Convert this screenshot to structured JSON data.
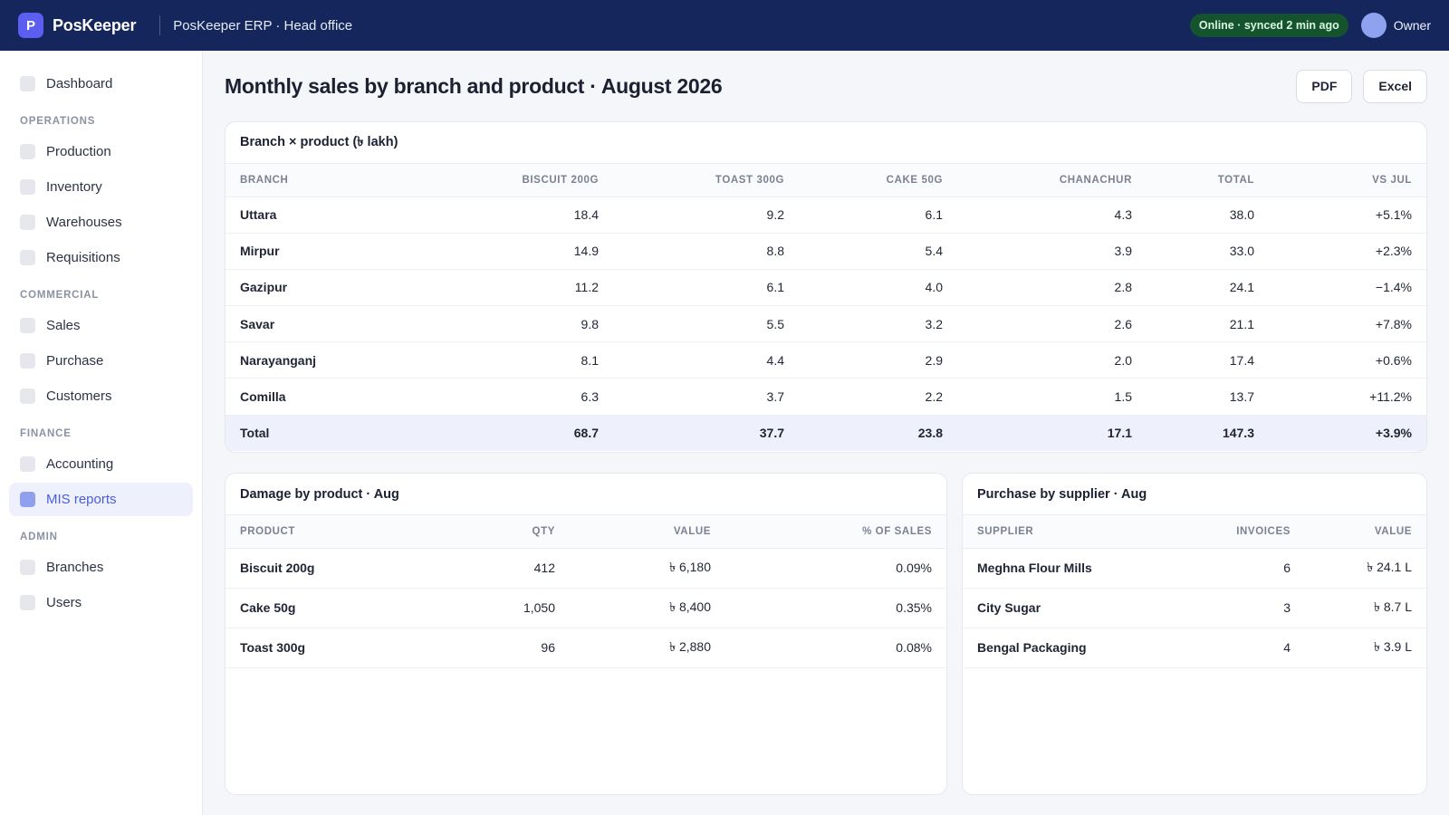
{
  "topbar": {
    "logo_letter": "P",
    "brand": "PosKeeper",
    "app_title": "PosKeeper ERP · Head office",
    "status": "Online · synced 2 min ago",
    "user": "Owner"
  },
  "sidebar": {
    "dashboard": "Dashboard",
    "sections": {
      "operations": "OPERATIONS",
      "commercial": "COMMERCIAL",
      "finance": "FINANCE",
      "admin": "ADMIN"
    },
    "items": {
      "production": "Production",
      "inventory": "Inventory",
      "warehouses": "Warehouses",
      "requisitions": "Requisitions",
      "sales": "Sales",
      "purchase": "Purchase",
      "customers": "Customers",
      "accounting": "Accounting",
      "mis_reports": "MIS reports",
      "branches": "Branches",
      "users": "Users"
    },
    "active": "MIS reports"
  },
  "page": {
    "title": "Monthly sales by branch and product · August 2026",
    "pdf_label": "PDF",
    "excel_label": "Excel"
  },
  "branch_table": {
    "title": "Branch × product (৳ lakh)",
    "headers": [
      "BRANCH",
      "BISCUIT 200G",
      "TOAST 300G",
      "CAKE 50G",
      "CHANACHUR",
      "TOTAL",
      "VS JUL"
    ],
    "rows": [
      [
        "Uttara",
        "18.4",
        "9.2",
        "6.1",
        "4.3",
        "38.0",
        "+5.1%"
      ],
      [
        "Mirpur",
        "14.9",
        "8.8",
        "5.4",
        "3.9",
        "33.0",
        "+2.3%"
      ],
      [
        "Gazipur",
        "11.2",
        "6.1",
        "4.0",
        "2.8",
        "24.1",
        "−1.4%"
      ],
      [
        "Savar",
        "9.8",
        "5.5",
        "3.2",
        "2.6",
        "21.1",
        "+7.8%"
      ],
      [
        "Narayanganj",
        "8.1",
        "4.4",
        "2.9",
        "2.0",
        "17.4",
        "+0.6%"
      ],
      [
        "Comilla",
        "6.3",
        "3.7",
        "2.2",
        "1.5",
        "13.7",
        "+11.2%"
      ]
    ],
    "total": [
      "Total",
      "68.7",
      "37.7",
      "23.8",
      "17.1",
      "147.3",
      "+3.9%"
    ]
  },
  "damage_table": {
    "title": "Damage by product · Aug",
    "headers": [
      "PRODUCT",
      "QTY",
      "VALUE",
      "% OF SALES"
    ],
    "rows": [
      [
        "Biscuit 200g",
        "412",
        "৳ 6,180",
        "0.09%"
      ],
      [
        "Cake 50g",
        "1,050",
        "৳ 8,400",
        "0.35%"
      ],
      [
        "Toast 300g",
        "96",
        "৳ 2,880",
        "0.08%"
      ]
    ]
  },
  "purchase_table": {
    "title": "Purchase by supplier · Aug",
    "headers": [
      "SUPPLIER",
      "INVOICES",
      "VALUE"
    ],
    "rows": [
      [
        "Meghna Flour Mills",
        "6",
        "৳ 24.1 L"
      ],
      [
        "City Sugar",
        "3",
        "৳ 8.7 L"
      ],
      [
        "Bengal Packaging",
        "4",
        "৳ 3.9 L"
      ]
    ]
  }
}
